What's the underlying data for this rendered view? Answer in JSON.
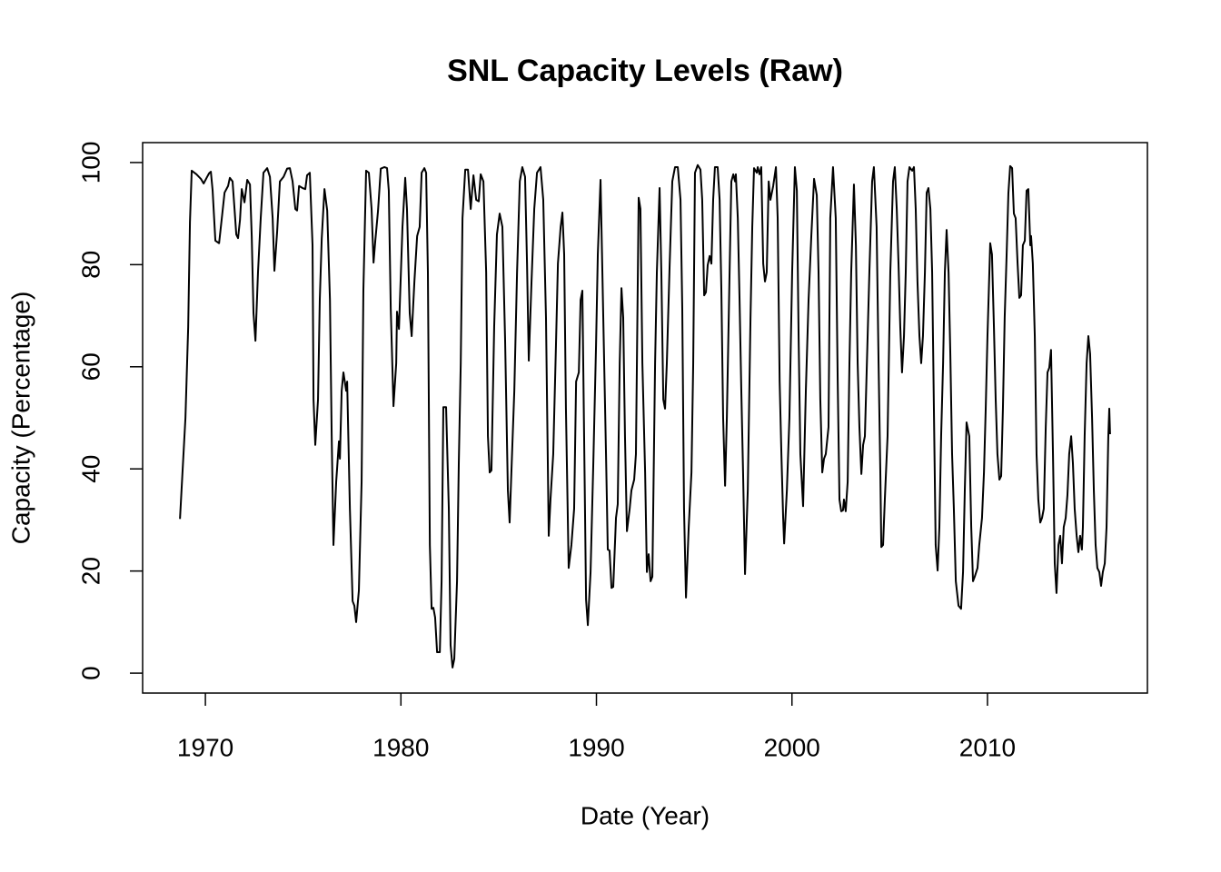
{
  "chart_data": {
    "type": "line",
    "title": "SNL Capacity Levels (Raw)",
    "x_label": "Date (Year)",
    "y_label": "Capacity (Percentage)",
    "color": "#000000",
    "xlim": [
      1966.79,
      2018.18
    ],
    "ylim": [
      -3.9,
      103.9
    ],
    "xticks": [
      1970,
      1980,
      1990,
      2000,
      2010
    ],
    "yticks": [
      0,
      20,
      40,
      60,
      80,
      100
    ],
    "x": [
      1968.7,
      1968.98,
      1969.12,
      1969.21,
      1969.3,
      1969.54,
      1969.77,
      1969.91,
      1970.09,
      1970.19,
      1970.28,
      1970.37,
      1970.51,
      1970.7,
      1970.84,
      1970.98,
      1971.16,
      1971.25,
      1971.39,
      1971.49,
      1971.58,
      1971.67,
      1971.77,
      1971.86,
      1972.0,
      1972.14,
      1972.28,
      1972.37,
      1972.46,
      1972.56,
      1972.69,
      1972.83,
      1972.97,
      1973.16,
      1973.3,
      1973.44,
      1973.53,
      1973.67,
      1973.81,
      1974.0,
      1974.18,
      1974.32,
      1974.46,
      1974.6,
      1974.69,
      1974.79,
      1974.97,
      1975.11,
      1975.2,
      1975.34,
      1975.48,
      1975.53,
      1975.62,
      1975.76,
      1975.85,
      1975.95,
      1976.09,
      1976.23,
      1976.37,
      1976.46,
      1976.55,
      1976.69,
      1976.83,
      1976.88,
      1976.97,
      1977.06,
      1977.2,
      1977.25,
      1977.39,
      1977.53,
      1977.62,
      1977.71,
      1977.85,
      1977.99,
      1978.08,
      1978.22,
      1978.36,
      1978.5,
      1978.6,
      1978.69,
      1978.83,
      1978.97,
      1979.15,
      1979.29,
      1979.38,
      1979.48,
      1979.62,
      1979.76,
      1979.8,
      1979.9,
      1980.08,
      1980.22,
      1980.31,
      1980.45,
      1980.55,
      1980.69,
      1980.83,
      1980.96,
      1981.06,
      1981.2,
      1981.29,
      1981.38,
      1981.48,
      1981.57,
      1981.66,
      1981.75,
      1981.85,
      1981.99,
      1982.08,
      1982.17,
      1982.31,
      1982.45,
      1982.54,
      1982.64,
      1982.73,
      1982.87,
      1982.96,
      1983.06,
      1983.15,
      1983.29,
      1983.43,
      1983.57,
      1983.71,
      1983.85,
      1983.98,
      1984.08,
      1984.22,
      1984.36,
      1984.45,
      1984.54,
      1984.63,
      1984.77,
      1984.91,
      1985.05,
      1985.19,
      1985.33,
      1985.47,
      1985.56,
      1985.7,
      1985.8,
      1985.94,
      1986.08,
      1986.21,
      1986.35,
      1986.45,
      1986.54,
      1986.68,
      1986.82,
      1986.96,
      1987.14,
      1987.28,
      1987.42,
      1987.56,
      1987.65,
      1987.79,
      1987.93,
      1988.03,
      1988.17,
      1988.26,
      1988.35,
      1988.44,
      1988.58,
      1988.72,
      1988.86,
      1988.96,
      1989.1,
      1989.19,
      1989.28,
      1989.37,
      1989.47,
      1989.56,
      1989.7,
      1989.84,
      1989.98,
      1990.07,
      1990.21,
      1990.35,
      1990.49,
      1990.58,
      1990.67,
      1990.77,
      1990.86,
      1991.0,
      1991.09,
      1991.19,
      1991.28,
      1991.37,
      1991.46,
      1991.56,
      1991.7,
      1991.79,
      1991.93,
      1992.02,
      1992.16,
      1992.25,
      1992.35,
      1992.49,
      1992.58,
      1992.67,
      1992.77,
      1992.86,
      1993.0,
      1993.09,
      1993.23,
      1993.32,
      1993.42,
      1993.51,
      1993.6,
      1993.74,
      1993.88,
      1994.02,
      1994.16,
      1994.3,
      1994.39,
      1994.48,
      1994.58,
      1994.72,
      1994.86,
      1994.95,
      1995.04,
      1995.18,
      1995.32,
      1995.41,
      1995.51,
      1995.6,
      1995.69,
      1995.79,
      1995.88,
      1995.97,
      1996.06,
      1996.2,
      1996.3,
      1996.39,
      1996.48,
      1996.58,
      1996.67,
      1996.81,
      1996.9,
      1997.0,
      1997.09,
      1997.13,
      1997.23,
      1997.32,
      1997.41,
      1997.5,
      1997.6,
      1997.74,
      1997.88,
      1997.97,
      1998.06,
      1998.2,
      1998.25,
      1998.34,
      1998.43,
      1998.53,
      1998.62,
      1998.71,
      1998.81,
      1998.9,
      1999.04,
      1999.18,
      1999.27,
      1999.37,
      1999.46,
      1999.55,
      1999.6,
      1999.74,
      1999.87,
      2000.01,
      2000.15,
      2000.25,
      2000.34,
      2000.43,
      2000.57,
      2000.71,
      2000.85,
      2000.99,
      2001.13,
      2001.27,
      2001.36,
      2001.45,
      2001.55,
      2001.64,
      2001.73,
      2001.87,
      2001.96,
      2002.1,
      2002.24,
      2002.34,
      2002.43,
      2002.52,
      2002.61,
      2002.66,
      2002.75,
      2002.85,
      2002.94,
      2003.03,
      2003.17,
      2003.27,
      2003.36,
      2003.45,
      2003.55,
      2003.64,
      2003.73,
      2003.82,
      2003.96,
      2004.1,
      2004.19,
      2004.33,
      2004.43,
      2004.52,
      2004.57,
      2004.66,
      2004.75,
      2004.89,
      2005.03,
      2005.17,
      2005.26,
      2005.36,
      2005.45,
      2005.54,
      2005.63,
      2005.73,
      2005.82,
      2005.91,
      2006.01,
      2006.15,
      2006.24,
      2006.33,
      2006.42,
      2006.52,
      2006.61,
      2006.7,
      2006.8,
      2006.89,
      2006.98,
      2007.08,
      2007.17,
      2007.26,
      2007.35,
      2007.45,
      2007.54,
      2007.63,
      2007.73,
      2007.82,
      2007.91,
      2008.01,
      2008.1,
      2008.19,
      2008.28,
      2008.38,
      2008.52,
      2008.65,
      2008.75,
      2008.84,
      2008.93,
      2009.07,
      2009.17,
      2009.26,
      2009.35,
      2009.49,
      2009.58,
      2009.72,
      2009.82,
      2009.91,
      2010.0,
      2010.14,
      2010.23,
      2010.33,
      2010.42,
      2010.51,
      2010.61,
      2010.7,
      2010.79,
      2010.88,
      2010.98,
      2011.07,
      2011.16,
      2011.26,
      2011.35,
      2011.44,
      2011.54,
      2011.63,
      2011.72,
      2011.81,
      2011.91,
      2012.0,
      2012.09,
      2012.19,
      2012.23,
      2012.32,
      2012.42,
      2012.51,
      2012.6,
      2012.7,
      2012.79,
      2012.88,
      2012.98,
      2013.07,
      2013.16,
      2013.25,
      2013.35,
      2013.44,
      2013.53,
      2013.63,
      2013.72,
      2013.81,
      2013.9,
      2014.0,
      2014.09,
      2014.18,
      2014.28,
      2014.37,
      2014.46,
      2014.56,
      2014.65,
      2014.74,
      2014.83,
      2014.88,
      2014.97,
      2015.07,
      2015.16,
      2015.25,
      2015.35,
      2015.44,
      2015.53,
      2015.62,
      2015.72,
      2015.81,
      2015.9,
      2016.0,
      2016.09,
      2016.18,
      2016.23,
      2016.27
    ],
    "values": [
      30.2,
      50.0,
      67.8,
      88.3,
      98.4,
      97.7,
      96.8,
      95.9,
      97.2,
      97.9,
      98.2,
      94.5,
      84.7,
      84.2,
      89.1,
      94.1,
      95.4,
      97.0,
      96.3,
      90.9,
      85.9,
      85.2,
      88.8,
      94.8,
      92.2,
      96.6,
      95.7,
      85.6,
      70.5,
      65.1,
      78.5,
      89.1,
      98.0,
      98.9,
      97.2,
      89.1,
      78.8,
      86.5,
      96.3,
      97.2,
      98.8,
      98.9,
      96.3,
      90.9,
      90.6,
      95.4,
      95.0,
      94.8,
      97.5,
      98.0,
      83.8,
      53.6,
      44.7,
      53.6,
      73.1,
      85.1,
      94.8,
      90.6,
      73.1,
      46.4,
      25.1,
      37.5,
      45.4,
      42.0,
      55.3,
      58.9,
      55.3,
      57.1,
      32.2,
      14.1,
      13.2,
      10.0,
      16.2,
      37.5,
      74.9,
      98.4,
      98.0,
      90.9,
      80.4,
      84.7,
      90.6,
      98.8,
      99.1,
      98.9,
      94.5,
      71.4,
      52.3,
      60.7,
      70.8,
      67.4,
      87.4,
      97.0,
      90.9,
      70.5,
      66.0,
      76.7,
      85.6,
      87.4,
      98.0,
      98.9,
      98.0,
      78.5,
      25.1,
      12.6,
      12.8,
      10.9,
      4.1,
      4.1,
      18.0,
      52.1,
      52.1,
      32.2,
      5.5,
      1.1,
      2.8,
      18.0,
      41.1,
      60.7,
      89.1,
      98.6,
      98.6,
      90.9,
      97.5,
      92.7,
      92.4,
      97.7,
      96.3,
      78.5,
      46.4,
      39.3,
      39.7,
      67.8,
      85.9,
      90.0,
      87.4,
      65.1,
      35.8,
      29.5,
      44.7,
      55.3,
      78.5,
      96.3,
      99.1,
      97.2,
      80.2,
      61.2,
      76.7,
      90.9,
      98.0,
      99.1,
      92.7,
      69.6,
      26.9,
      34.0,
      42.9,
      64.2,
      80.2,
      87.4,
      90.2,
      82.0,
      51.8,
      20.6,
      25.1,
      32.2,
      57.1,
      58.9,
      73.1,
      74.9,
      46.4,
      14.4,
      9.4,
      19.8,
      41.1,
      64.2,
      82.0,
      96.6,
      69.6,
      42.9,
      24.2,
      24.0,
      16.7,
      16.9,
      30.4,
      33.1,
      60.7,
      75.4,
      69.6,
      46.4,
      27.8,
      32.2,
      35.8,
      37.9,
      42.9,
      93.1,
      90.9,
      60.7,
      39.3,
      19.8,
      23.3,
      18.0,
      18.9,
      60.7,
      78.5,
      95.0,
      78.5,
      53.6,
      51.8,
      60.7,
      79.4,
      96.3,
      99.1,
      99.1,
      92.7,
      71.4,
      32.2,
      14.8,
      28.6,
      39.3,
      60.7,
      98.0,
      99.5,
      98.6,
      92.7,
      74.0,
      74.6,
      79.9,
      81.7,
      80.2,
      92.7,
      99.1,
      99.1,
      92.7,
      74.9,
      50.0,
      36.7,
      50.0,
      78.5,
      96.3,
      97.7,
      96.3,
      97.7,
      89.1,
      73.1,
      55.3,
      39.3,
      19.4,
      35.8,
      69.6,
      87.4,
      98.9,
      98.0,
      99.1,
      97.7,
      99.1,
      80.2,
      76.7,
      78.5,
      96.3,
      92.7,
      95.4,
      99.1,
      89.1,
      57.1,
      42.9,
      30.4,
      25.4,
      35.8,
      50.0,
      78.5,
      99.1,
      94.5,
      66.0,
      42.9,
      32.7,
      55.3,
      73.1,
      85.6,
      96.8,
      93.6,
      78.5,
      53.6,
      39.3,
      42.0,
      42.9,
      48.2,
      89.1,
      99.1,
      89.1,
      57.1,
      34.0,
      31.7,
      31.9,
      34.0,
      31.7,
      37.5,
      60.7,
      78.5,
      95.7,
      83.8,
      60.7,
      48.2,
      39.0,
      44.7,
      46.4,
      58.9,
      78.5,
      96.3,
      99.1,
      87.4,
      60.7,
      39.3,
      24.7,
      25.1,
      34.0,
      46.4,
      78.5,
      96.3,
      99.1,
      90.9,
      80.2,
      67.8,
      58.9,
      66.0,
      78.5,
      96.3,
      99.1,
      98.4,
      99.1,
      90.9,
      76.7,
      66.0,
      60.7,
      66.0,
      78.5,
      94.1,
      95.0,
      90.9,
      78.5,
      51.8,
      25.1,
      20.1,
      28.6,
      46.4,
      60.7,
      78.5,
      86.8,
      78.5,
      62.5,
      42.9,
      32.2,
      18.0,
      13.2,
      12.6,
      19.8,
      35.8,
      49.1,
      46.4,
      28.6,
      18.0,
      18.9,
      20.6,
      25.1,
      30.4,
      39.3,
      51.8,
      66.0,
      84.2,
      82.0,
      67.8,
      53.6,
      42.9,
      37.9,
      38.6,
      51.8,
      69.6,
      82.0,
      94.0,
      99.3,
      98.9,
      90.0,
      89.1,
      80.2,
      73.5,
      74.0,
      83.8,
      84.7,
      94.5,
      94.8,
      83.8,
      85.6,
      80.2,
      66.0,
      42.9,
      34.0,
      29.5,
      30.4,
      32.2,
      48.2,
      58.9,
      59.8,
      63.3,
      42.9,
      21.5,
      15.7,
      25.1,
      26.9,
      21.5,
      28.6,
      30.4,
      34.9,
      42.9,
      46.4,
      41.1,
      32.2,
      26.9,
      23.7,
      26.9,
      24.2,
      28.6,
      46.4,
      60.7,
      66.0,
      62.5,
      50.0,
      35.8,
      25.1,
      20.6,
      19.8,
      17.1,
      19.8,
      21.5,
      28.6,
      46.4,
      51.8,
      46.8
    ]
  }
}
